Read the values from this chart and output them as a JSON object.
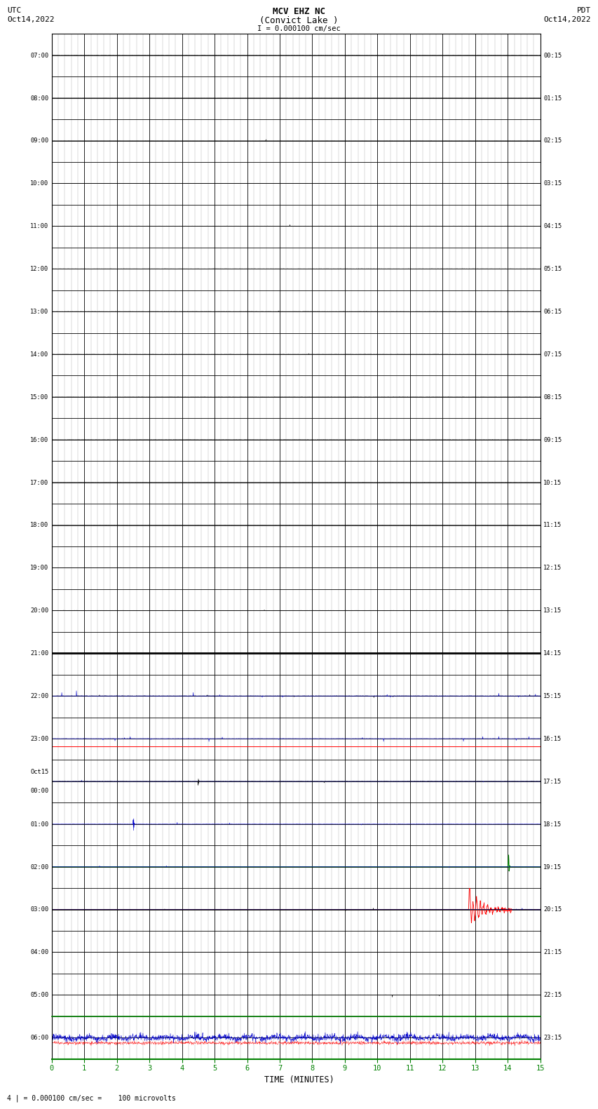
{
  "title_line1": "MCV EHZ NC",
  "title_line2": "(Convict Lake )",
  "title_line3": "I = 0.000100 cm/sec",
  "left_top_label1": "UTC",
  "left_top_label2": "Oct14,2022",
  "right_top_label1": "PDT",
  "right_top_label2": "Oct14,2022",
  "xlabel": "TIME (MINUTES)",
  "bottom_label": "4 | = 0.000100 cm/sec =    100 microvolts",
  "x_min": 0,
  "x_max": 15,
  "n_rows": 24,
  "row_labels_left": [
    "07:00",
    "08:00",
    "09:00",
    "10:00",
    "11:00",
    "12:00",
    "13:00",
    "14:00",
    "15:00",
    "16:00",
    "17:00",
    "18:00",
    "19:00",
    "20:00",
    "21:00",
    "22:00",
    "23:00",
    "Oct15\n00:00",
    "01:00",
    "02:00",
    "03:00",
    "04:00",
    "05:00",
    "06:00"
  ],
  "row_labels_right": [
    "00:15",
    "01:15",
    "02:15",
    "03:15",
    "04:15",
    "05:15",
    "06:15",
    "07:15",
    "08:15",
    "09:15",
    "10:15",
    "11:15",
    "12:15",
    "13:15",
    "14:15",
    "15:15",
    "16:15",
    "17:15",
    "18:15",
    "19:15",
    "20:15",
    "21:15",
    "22:15",
    "23:15"
  ],
  "background_color": "#ffffff",
  "grid_major_color": "#000000",
  "grid_minor_color": "#aaaaaa",
  "trace_color_black": "#000000",
  "trace_color_blue": "#0000cc",
  "trace_color_red": "#ff0000",
  "trace_color_green": "#008000",
  "axis_bottom_color": "#008000"
}
